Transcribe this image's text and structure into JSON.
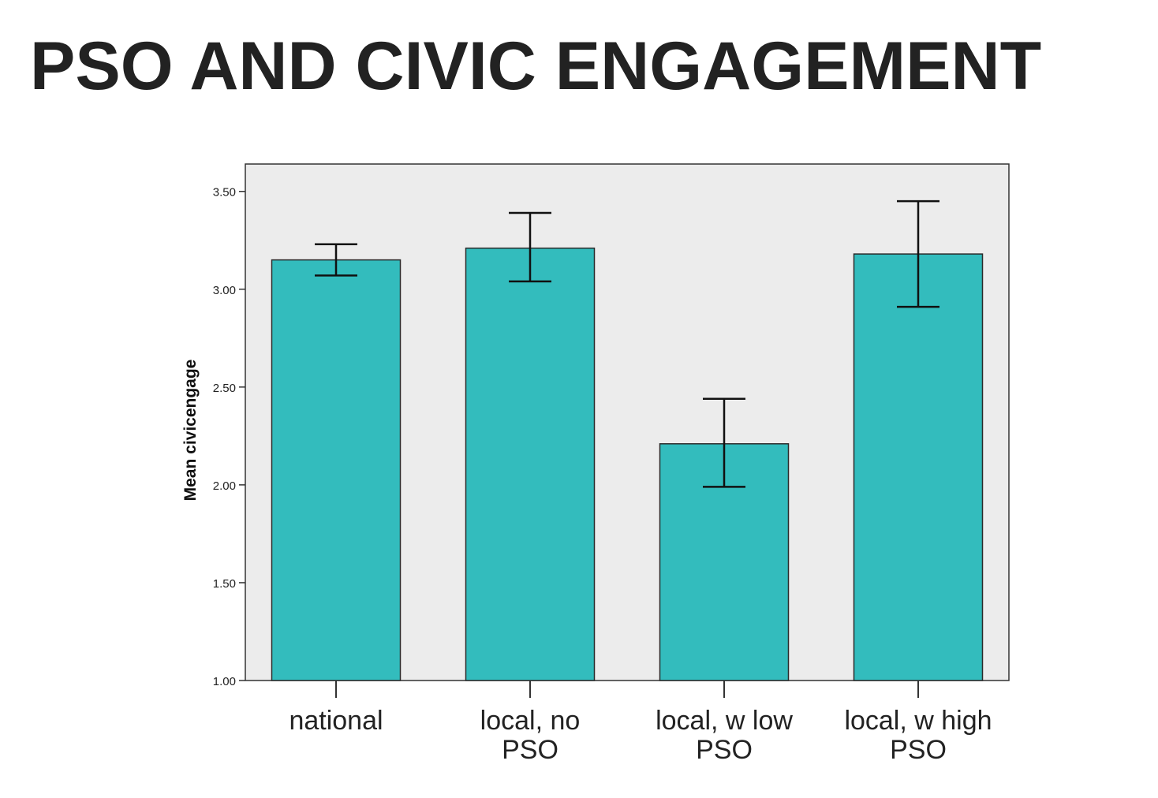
{
  "slide": {
    "title": "PSO AND CIVIC ENGAGEMENT"
  },
  "colors": {
    "bar_fill": "#33bcbd",
    "bar_stroke": "#2a2a2a",
    "plot_background": "#ececec",
    "error_bar": "#111111",
    "title": "#222222"
  },
  "chart_data": {
    "type": "bar",
    "title": "",
    "xlabel": "",
    "ylabel": "Mean civicengage",
    "ylim": [
      1.0,
      3.64
    ],
    "yticks": [
      "1.00",
      "1.50",
      "2.00",
      "2.50",
      "3.00",
      "3.50"
    ],
    "ytick_values": [
      1.0,
      1.5,
      2.0,
      2.5,
      3.0,
      3.5
    ],
    "categories": [
      [
        "national"
      ],
      [
        "local, no",
        "PSO"
      ],
      [
        "local, w low",
        "PSO"
      ],
      [
        "local, w high",
        "PSO"
      ]
    ],
    "values": [
      3.15,
      3.21,
      2.21,
      3.18
    ],
    "error_low": [
      3.07,
      3.04,
      1.99,
      2.91
    ],
    "error_high": [
      3.23,
      3.39,
      2.44,
      3.45
    ],
    "grid": false,
    "legend": "none"
  }
}
